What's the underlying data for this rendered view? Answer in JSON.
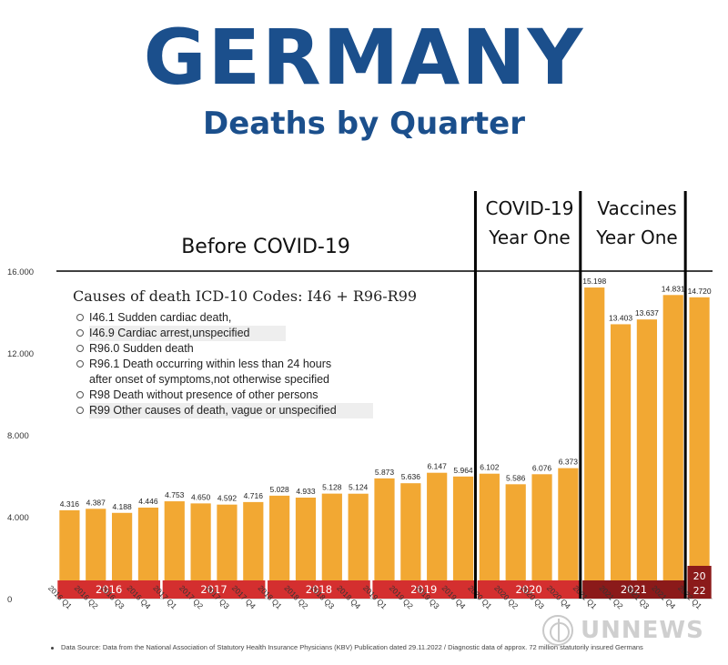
{
  "header": {
    "title": "GERMANY",
    "subtitle": "Deaths by Quarter"
  },
  "period_labels": {
    "before": "Before COVID-19",
    "covid_line1": "COVID-19",
    "covid_line2": "Year One",
    "vaccines_line1": "Vaccines",
    "vaccines_line2": "Year One"
  },
  "legend": {
    "title": "Causes of death ICD-10 Codes: I46 + R96-R99",
    "items": [
      {
        "line1": "I46.1 Sudden cardiac death,",
        "line2": ""
      },
      {
        "line1": "I46.9 Cardiac arrest,unspecified",
        "line2": ""
      },
      {
        "line1": "R96.0 Sudden death",
        "line2": ""
      },
      {
        "line1": "R96.1 Death occurring within less than 24 hours",
        "line2": "after onset of symptoms,not otherwise specified"
      },
      {
        "line1": "R98 Death without presence of other persons",
        "line2": ""
      },
      {
        "line1": "R99 Other causes of death, vague or unspecified",
        "line2": ""
      }
    ]
  },
  "source": "Data Source: Data from the National Association of Statutory Health Insurance Physicians (KBV) Publication dated 29.11.2022 / Diagnostic data of approx. 72 million statutorily insured Germans",
  "watermark": "UNNEWS",
  "colors": {
    "title": "#1b4f8c",
    "bar": "#f2a833",
    "year_band": "#d42f2f",
    "year_band_dark": "#8b1a1a",
    "divider": "#000000"
  },
  "chart_data": {
    "type": "bar",
    "categories": [
      "2016 Q1",
      "2016 Q2",
      "2016 Q3",
      "2016 Q4",
      "2017 Q1",
      "2017 Q2",
      "2017 Q3",
      "2017 Q4",
      "2018 Q1",
      "2018 Q2",
      "2018 Q3",
      "2018 Q4",
      "2019 Q1",
      "2019 Q2",
      "2019 Q3",
      "2019 Q4",
      "2020 Q1",
      "2020 Q2",
      "2020 Q3",
      "2020 Q4",
      "2021 Q1",
      "2021 Q2",
      "2021 Q3",
      "2021 Q4",
      "2022 Q1"
    ],
    "values": [
      4316,
      4387,
      4188,
      4446,
      4753,
      4650,
      4592,
      4716,
      5028,
      4933,
      5128,
      5124,
      5873,
      5636,
      6147,
      5964,
      6102,
      5586,
      6076,
      6373,
      15198,
      13403,
      13637,
      14831,
      14720
    ],
    "value_labels": [
      "4.316",
      "4.387",
      "4.188",
      "4.446",
      "4.753",
      "4.650",
      "4.592",
      "4.716",
      "5.028",
      "4.933",
      "5.128",
      "5.124",
      "5.873",
      "5.636",
      "6.147",
      "5.964",
      "6.102",
      "5.586",
      "6.076",
      "6.373",
      "15.198",
      "13.403",
      "13.637",
      "14.831",
      "14.720"
    ],
    "years": [
      {
        "label": "2016",
        "start": 0,
        "end": 3
      },
      {
        "label": "2017",
        "start": 4,
        "end": 7
      },
      {
        "label": "2018",
        "start": 8,
        "end": 11
      },
      {
        "label": "2019",
        "start": 12,
        "end": 15
      },
      {
        "label": "2020",
        "start": 16,
        "end": 19
      },
      {
        "label": "2021",
        "start": 20,
        "end": 23
      },
      {
        "label": "20 22",
        "start": 24,
        "end": 24
      }
    ],
    "yticks": [
      0,
      4000,
      8000,
      12000,
      16000
    ],
    "ytick_labels": [
      "0",
      "4.000",
      "8.000",
      "12.000",
      "16.000"
    ],
    "ylim": [
      0,
      16000
    ],
    "xlabel": "",
    "ylabel": "",
    "grid": false,
    "legend": "none"
  }
}
